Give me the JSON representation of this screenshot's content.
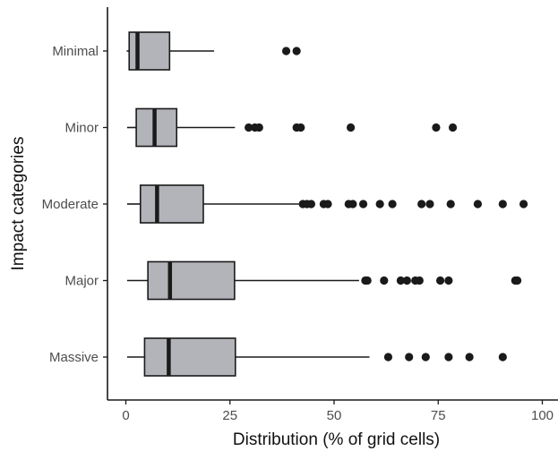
{
  "chart_data": {
    "type": "boxplot",
    "orientation": "horizontal",
    "xlabel": "Distribution (% of grid cells)",
    "ylabel": "Impact categories",
    "xlim": [
      -4,
      100
    ],
    "xticks": [
      0,
      25,
      50,
      75,
      100
    ],
    "grid": false,
    "box_fill": "#b2b4b9",
    "line_color": "#1a1a1a",
    "categories": [
      "Minimal",
      "Minor",
      "Moderate",
      "Major",
      "Massive"
    ],
    "boxes": [
      {
        "category": "Minimal",
        "whisker_low": 0.2,
        "q1": 0.8,
        "median": 2.8,
        "q3": 10.5,
        "whisker_high": 21.2,
        "outliers": [
          38.5,
          41
        ]
      },
      {
        "category": "Minor",
        "whisker_low": 0.3,
        "q1": 2.5,
        "median": 6.9,
        "q3": 12.2,
        "whisker_high": 26.2,
        "outliers": [
          29.5,
          31,
          32,
          41,
          42,
          54,
          74.5,
          78.5
        ]
      },
      {
        "category": "Moderate",
        "whisker_low": 0.3,
        "q1": 3.5,
        "median": 7.5,
        "q3": 18.6,
        "whisker_high": 41.5,
        "outliers": [
          42.5,
          43.5,
          44.5,
          47.5,
          48.5,
          53.5,
          54.5,
          57,
          61,
          64,
          71,
          73,
          78,
          84.5,
          90.5,
          95.5
        ]
      },
      {
        "category": "Major",
        "whisker_low": 0.3,
        "q1": 5.3,
        "median": 10.6,
        "q3": 26.1,
        "whisker_high": 56,
        "outliers": [
          57.5,
          58,
          62,
          66,
          67.5,
          69.5,
          70.5,
          75.5,
          77.5,
          93.5,
          94
        ]
      },
      {
        "category": "Massive",
        "whisker_low": 0.3,
        "q1": 4.5,
        "median": 10.3,
        "q3": 26.3,
        "whisker_high": 58.5,
        "outliers": [
          63,
          68,
          72,
          77.5,
          82.5,
          90.5
        ]
      }
    ]
  }
}
